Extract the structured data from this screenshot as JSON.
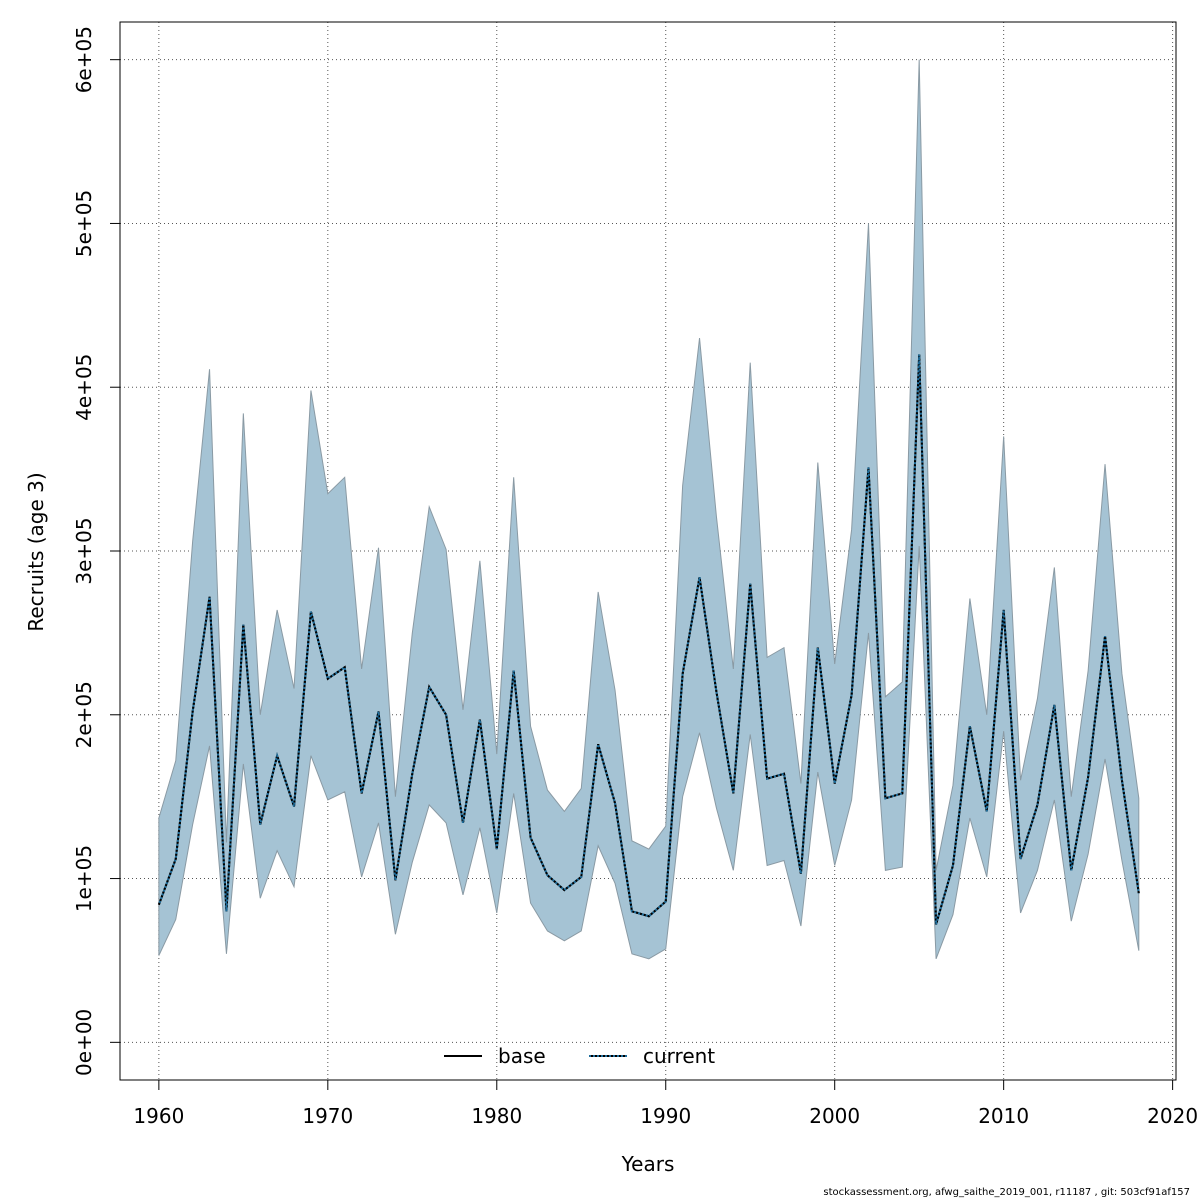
{
  "chart_data": {
    "type": "area",
    "xlabel": "Years",
    "ylabel": "Recruits (age 3)",
    "xlim": [
      1957.7,
      2020.2
    ],
    "ylim": [
      -23000,
      623000
    ],
    "x_ticks": [
      1960,
      1970,
      1980,
      1990,
      2000,
      2010,
      2020
    ],
    "y_ticks": [
      0,
      100000,
      200000,
      300000,
      400000,
      500000,
      600000
    ],
    "y_tick_labels": [
      "0e+00",
      "1e+05",
      "2e+05",
      "3e+05",
      "4e+05",
      "5e+05",
      "6e+05"
    ],
    "grid": true,
    "legend": {
      "placement": "bottom-center",
      "entries": [
        "base",
        "current"
      ]
    },
    "x": [
      1960,
      1961,
      1962,
      1963,
      1964,
      1965,
      1966,
      1967,
      1968,
      1969,
      1970,
      1971,
      1972,
      1973,
      1974,
      1975,
      1976,
      1977,
      1978,
      1979,
      1980,
      1981,
      1982,
      1983,
      1984,
      1985,
      1986,
      1987,
      1988,
      1989,
      1990,
      1991,
      1992,
      1993,
      1994,
      1995,
      1996,
      1997,
      1998,
      1999,
      2000,
      2001,
      2002,
      2003,
      2004,
      2005,
      2006,
      2007,
      2008,
      2009,
      2010,
      2011,
      2012,
      2013,
      2014,
      2015,
      2016,
      2017,
      2018
    ],
    "series": [
      {
        "name": "base",
        "style": "solid",
        "color": "#000000",
        "values": [
          84000,
          112000,
          202000,
          272000,
          80000,
          255000,
          133000,
          175000,
          144000,
          263000,
          222000,
          229000,
          152000,
          202000,
          99000,
          164000,
          217000,
          200000,
          134000,
          197000,
          118000,
          227000,
          125000,
          102000,
          93000,
          101000,
          182000,
          146000,
          80000,
          77000,
          86000,
          225000,
          284000,
          214000,
          152000,
          280000,
          161000,
          164000,
          103000,
          241000,
          158000,
          212000,
          351000,
          149000,
          152000,
          420000,
          72000,
          108000,
          193000,
          141000,
          264000,
          112000,
          145000,
          206000,
          105000,
          162000,
          248000,
          160000,
          91000
        ],
        "lower": [
          53000,
          75000,
          133000,
          181000,
          54000,
          170000,
          88000,
          117000,
          95000,
          175000,
          148000,
          153000,
          101000,
          134000,
          66000,
          110000,
          145000,
          134000,
          90000,
          131000,
          79000,
          152000,
          85000,
          68000,
          62000,
          68000,
          120000,
          97000,
          54000,
          51000,
          57000,
          150000,
          189000,
          143000,
          105000,
          188000,
          108000,
          111000,
          71000,
          165000,
          108000,
          148000,
          250000,
          105000,
          107000,
          303000,
          51000,
          78000,
          137000,
          101000,
          190000,
          79000,
          105000,
          148000,
          74000,
          115000,
          173000,
          111000,
          56000
        ],
        "upper": [
          137000,
          172000,
          306000,
          411000,
          122000,
          384000,
          200000,
          264000,
          216000,
          398000,
          335000,
          345000,
          228000,
          302000,
          150000,
          250000,
          327000,
          301000,
          203000,
          294000,
          176000,
          345000,
          193000,
          154000,
          141000,
          155000,
          275000,
          215000,
          123000,
          118000,
          132000,
          340000,
          430000,
          321000,
          228000,
          415000,
          235000,
          241000,
          158000,
          354000,
          231000,
          313000,
          500000,
          211000,
          220000,
          600000,
          105000,
          157000,
          271000,
          200000,
          370000,
          160000,
          210000,
          290000,
          150000,
          227000,
          353000,
          225000,
          149000
        ]
      },
      {
        "name": "current",
        "style": "dotted",
        "color": "#1f6e9c",
        "values": [
          84000,
          112000,
          202000,
          272000,
          80000,
          255000,
          133000,
          175000,
          144000,
          263000,
          222000,
          229000,
          152000,
          202000,
          99000,
          164000,
          217000,
          200000,
          134000,
          197000,
          118000,
          227000,
          125000,
          102000,
          93000,
          101000,
          182000,
          146000,
          80000,
          77000,
          86000,
          225000,
          284000,
          214000,
          152000,
          280000,
          161000,
          164000,
          103000,
          241000,
          158000,
          212000,
          351000,
          149000,
          152000,
          420000,
          72000,
          108000,
          193000,
          141000,
          264000,
          112000,
          145000,
          206000,
          105000,
          162000,
          248000,
          160000,
          91000
        ],
        "lower": [
          53000,
          75000,
          133000,
          181000,
          54000,
          170000,
          88000,
          117000,
          95000,
          175000,
          148000,
          153000,
          101000,
          134000,
          66000,
          110000,
          145000,
          134000,
          90000,
          131000,
          79000,
          152000,
          85000,
          68000,
          62000,
          68000,
          120000,
          97000,
          54000,
          51000,
          57000,
          150000,
          189000,
          143000,
          105000,
          188000,
          108000,
          111000,
          71000,
          165000,
          108000,
          148000,
          250000,
          105000,
          107000,
          303000,
          51000,
          78000,
          137000,
          101000,
          190000,
          79000,
          105000,
          148000,
          74000,
          115000,
          173000,
          111000,
          56000
        ],
        "upper": [
          137000,
          172000,
          306000,
          411000,
          122000,
          384000,
          200000,
          264000,
          216000,
          398000,
          335000,
          345000,
          228000,
          302000,
          150000,
          250000,
          327000,
          301000,
          203000,
          294000,
          176000,
          345000,
          193000,
          154000,
          141000,
          155000,
          275000,
          215000,
          123000,
          118000,
          132000,
          340000,
          430000,
          321000,
          228000,
          415000,
          235000,
          241000,
          158000,
          354000,
          231000,
          313000,
          500000,
          211000,
          220000,
          600000,
          105000,
          157000,
          271000,
          200000,
          370000,
          160000,
          210000,
          290000,
          150000,
          227000,
          353000,
          225000,
          149000
        ]
      }
    ],
    "band_fill_color": "#a5c3d4",
    "band_stroke_color": "#8a9aa4"
  },
  "footer": "stockassessment.org, afwg_saithe_2019_001, r11187 , git: 503cf91af157"
}
